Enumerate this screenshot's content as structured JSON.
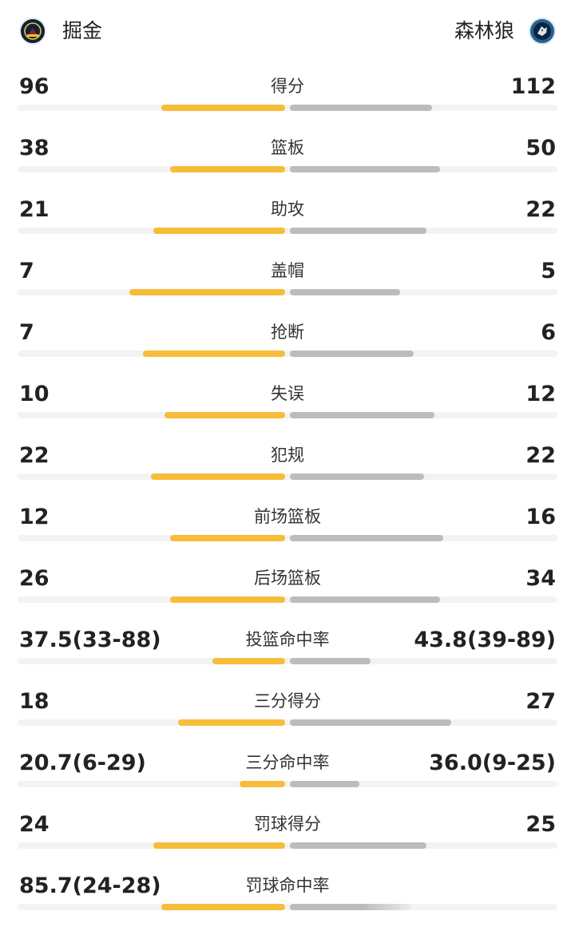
{
  "header": {
    "home_team": "掘金",
    "away_team": "森林狼",
    "home_logo_icon": "nuggets-logo-icon",
    "away_logo_icon": "timberwolves-logo-icon"
  },
  "colors": {
    "home_bar": "#f6bd3a",
    "away_bar": "#bcbcbc",
    "track": "#f3f3f3"
  },
  "stats": [
    {
      "label": "得分",
      "home": "96",
      "away": "112",
      "home_fill": 0.46,
      "away_fill": 0.53
    },
    {
      "label": "篮板",
      "home": "38",
      "away": "50",
      "home_fill": 0.43,
      "away_fill": 0.56
    },
    {
      "label": "助攻",
      "home": "21",
      "away": "22",
      "home_fill": 0.49,
      "away_fill": 0.51
    },
    {
      "label": "盖帽",
      "home": "7",
      "away": "5",
      "home_fill": 0.58,
      "away_fill": 0.41
    },
    {
      "label": "抢断",
      "home": "7",
      "away": "6",
      "home_fill": 0.53,
      "away_fill": 0.46
    },
    {
      "label": "失误",
      "home": "10",
      "away": "12",
      "home_fill": 0.45,
      "away_fill": 0.54
    },
    {
      "label": "犯规",
      "home": "22",
      "away": "22",
      "home_fill": 0.5,
      "away_fill": 0.5
    },
    {
      "label": "前场篮板",
      "home": "12",
      "away": "16",
      "home_fill": 0.43,
      "away_fill": 0.57
    },
    {
      "label": "后场篮板",
      "home": "26",
      "away": "34",
      "home_fill": 0.43,
      "away_fill": 0.56
    },
    {
      "label": "投篮命中率",
      "home": "37.5(33-88)",
      "away": "43.8(39-89)",
      "home_fill": 0.27,
      "away_fill": 0.3
    },
    {
      "label": "三分得分",
      "home": "18",
      "away": "27",
      "home_fill": 0.4,
      "away_fill": 0.6
    },
    {
      "label": "三分命中率",
      "home": "20.7(6-29)",
      "away": "36.0(9-25)",
      "home_fill": 0.17,
      "away_fill": 0.26
    },
    {
      "label": "罚球得分",
      "home": "24",
      "away": "25",
      "home_fill": 0.49,
      "away_fill": 0.51
    },
    {
      "label": "罚球命中率",
      "home": "85.7(24-28)",
      "away": "",
      "home_fill": 0.46,
      "away_fill": 0.45
    }
  ]
}
